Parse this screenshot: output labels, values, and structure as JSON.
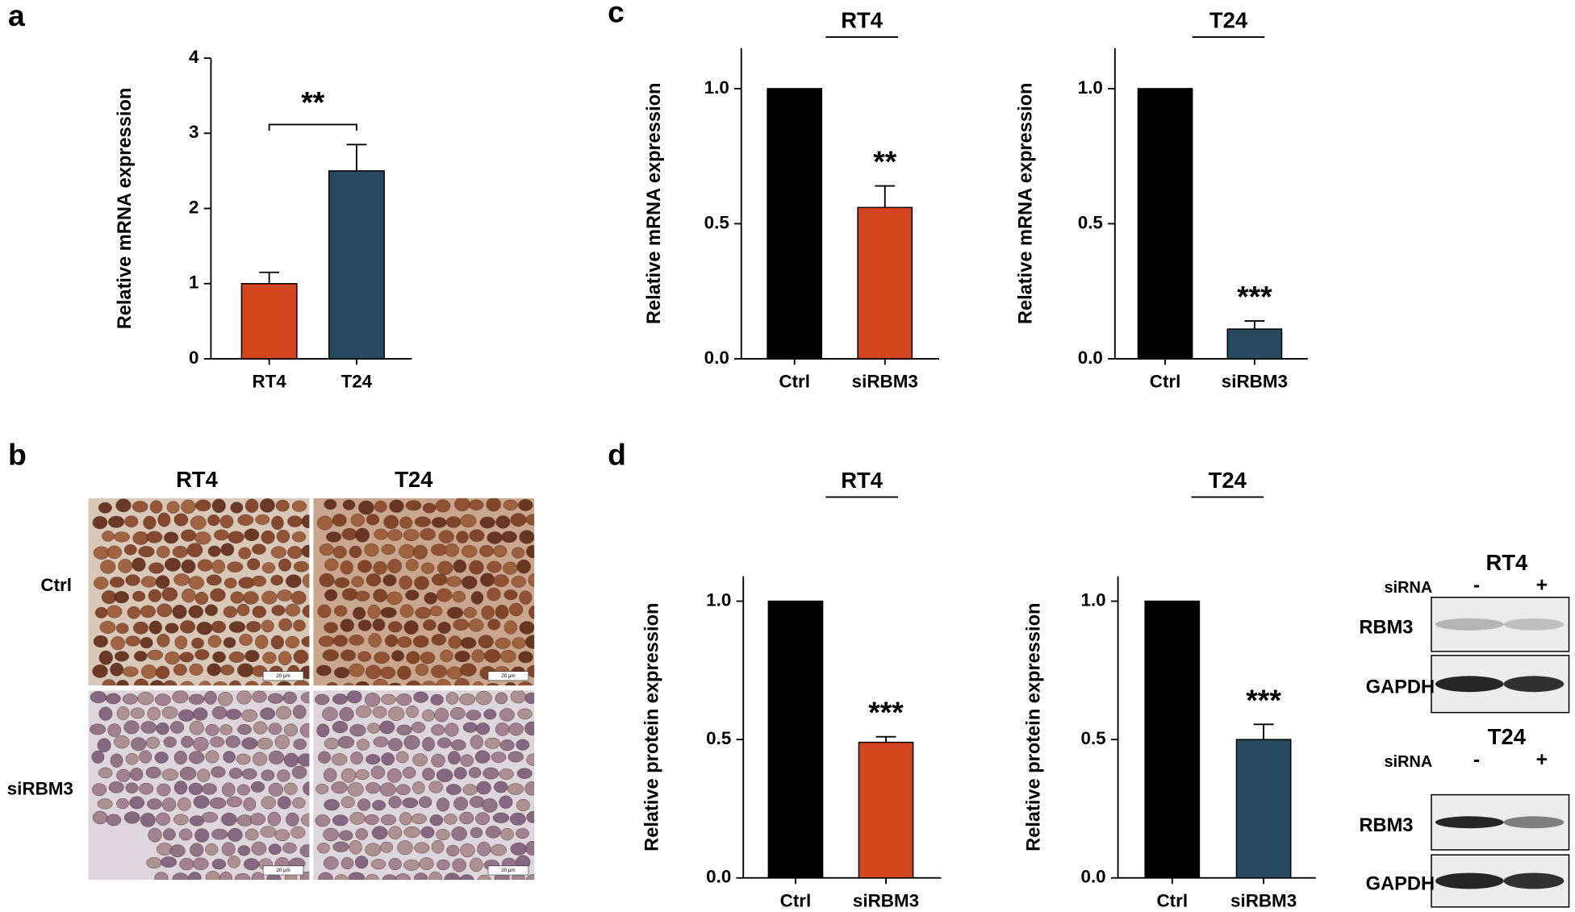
{
  "panel_labels": [
    "a",
    "b",
    "c",
    "d"
  ],
  "chart_data": [
    {
      "type": "bar",
      "ylabel": "Relative mRNA expression",
      "categories": [
        "RT4",
        "T24"
      ],
      "values": [
        1.0,
        2.5
      ],
      "errors": [
        0.15,
        0.35
      ],
      "colors": [
        "#d2451e",
        "#264a60"
      ],
      "ylim": [
        0,
        4
      ],
      "yticks": [
        0,
        1,
        2,
        3,
        4
      ],
      "bracket_label": "**"
    },
    {
      "type": "bar",
      "title": "RT4",
      "ylabel": "Relative mRNA expression",
      "categories": [
        "Ctrl",
        "siRBM3"
      ],
      "values": [
        1.0,
        0.56
      ],
      "errors": [
        null,
        0.08
      ],
      "colors": [
        "#000000",
        "#d2451e"
      ],
      "ylim": [
        0,
        1.15
      ],
      "yticks": [
        {
          "value": 0,
          "label": "0.0"
        },
        {
          "value": 0.5,
          "label": "0.5"
        },
        {
          "value": 1,
          "label": "1.0"
        }
      ],
      "annotation": "**"
    },
    {
      "type": "bar",
      "title": "T24",
      "ylabel": "Relative mRNA expression",
      "categories": [
        "Ctrl",
        "siRBM3"
      ],
      "values": [
        1.0,
        0.11
      ],
      "errors": [
        null,
        0.03
      ],
      "colors": [
        "#000000",
        "#264a60"
      ],
      "ylim": [
        0,
        1.15
      ],
      "yticks": [
        {
          "value": 0,
          "label": "0.0"
        },
        {
          "value": 0.5,
          "label": "0.5"
        },
        {
          "value": 1,
          "label": "1.0"
        }
      ],
      "annotation": "***"
    },
    {
      "type": "bar",
      "title": "RT4",
      "ylabel": "Relative protein expression",
      "categories": [
        "Ctrl",
        "siRBM3"
      ],
      "values": [
        1.0,
        0.49
      ],
      "errors": [
        null,
        0.02
      ],
      "colors": [
        "#000000",
        "#d2451e"
      ],
      "ylim": [
        0,
        1.09
      ],
      "yticks": [
        {
          "value": 0,
          "label": "0.0"
        },
        {
          "value": 0.5,
          "label": "0.5"
        },
        {
          "value": 1,
          "label": "1.0"
        }
      ],
      "annotation": "***"
    },
    {
      "type": "bar",
      "title": "T24",
      "ylabel": "Relative protein expression",
      "categories": [
        "Ctrl",
        "siRBM3"
      ],
      "values": [
        1.0,
        0.5
      ],
      "errors": [
        null,
        0.055
      ],
      "colors": [
        "#000000",
        "#264a60"
      ],
      "ylim": [
        0,
        1.09
      ],
      "yticks": [
        {
          "value": 0,
          "label": "0.0"
        },
        {
          "value": 0.5,
          "label": "0.5"
        },
        {
          "value": 1,
          "label": "1.0"
        }
      ],
      "annotation": "***"
    }
  ],
  "histology": {
    "columns": [
      "RT4",
      "T24"
    ],
    "rows": [
      "Ctrl",
      "siRBM3"
    ],
    "scale_bar": "20 µm"
  },
  "blots": [
    {
      "title": "RT4",
      "row_label": "siRNA",
      "lanes": [
        "-",
        "+"
      ],
      "proteins": [
        "RBM3",
        "GAPDH"
      ]
    },
    {
      "title": "T24",
      "row_label": "siRNA",
      "lanes": [
        "-",
        "+"
      ],
      "proteins": [
        "RBM3",
        "GAPDH"
      ]
    }
  ]
}
